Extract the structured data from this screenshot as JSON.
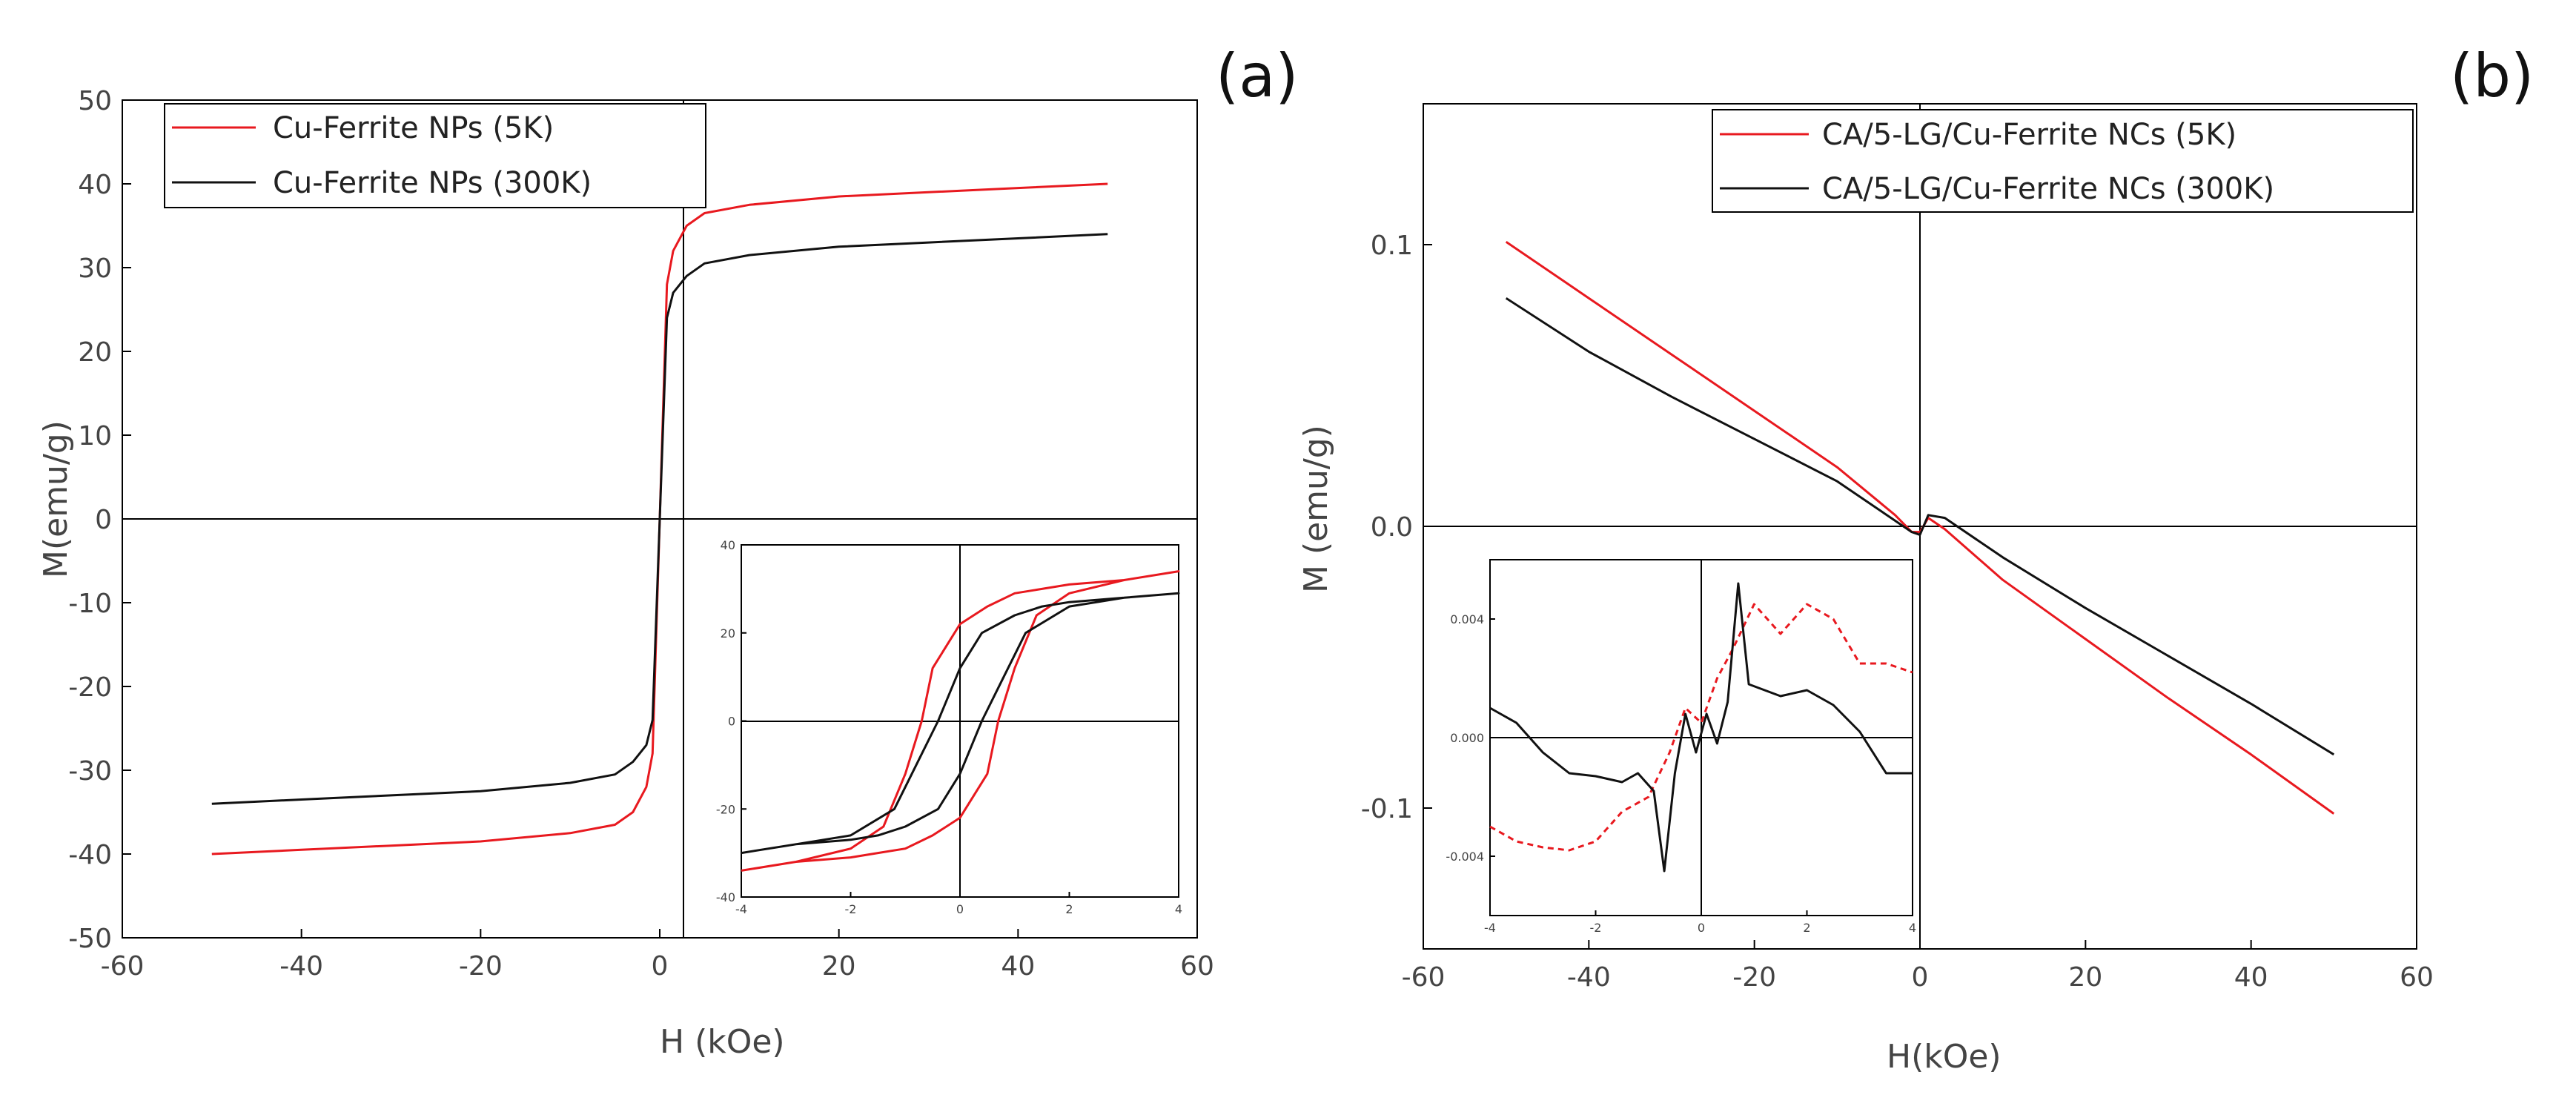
{
  "colors": {
    "red": "#e8191f",
    "black": "#111111",
    "axis": "#000000"
  },
  "panels": [
    {
      "label": "(a)"
    },
    {
      "label": "(b)"
    }
  ],
  "chart_data": [
    {
      "panel": "(a)",
      "type": "line",
      "xlabel": "H  (kOe)",
      "ylabel": "M(emu/g)",
      "xlim": [
        -60,
        60
      ],
      "ylim": [
        -50,
        50
      ],
      "xticks": [
        "-60",
        "-40",
        "-20",
        "0",
        "20",
        "40",
        "60"
      ],
      "yticks": [
        "50",
        "40",
        "30",
        "20",
        "10",
        "0",
        "-10",
        "-20",
        "-30",
        "-40",
        "-50"
      ],
      "series": [
        {
          "name": "Cu-Ferrite NPs (5K)",
          "color": "red",
          "x": [
            -50,
            -40,
            -30,
            -20,
            -10,
            -5,
            -3,
            -1.5,
            -0.8,
            0,
            0.8,
            1.5,
            3,
            5,
            10,
            20,
            30,
            40,
            50
          ],
          "y": [
            -40,
            -39.5,
            -39,
            -38.5,
            -37.5,
            -36.5,
            -35,
            -32,
            -28,
            0,
            28,
            32,
            35,
            36.5,
            37.5,
            38.5,
            39,
            39.5,
            40
          ]
        },
        {
          "name": "Cu-Ferrite NPs (300K)",
          "color": "black",
          "x": [
            -50,
            -40,
            -30,
            -20,
            -10,
            -5,
            -3,
            -1.5,
            -0.8,
            0,
            0.8,
            1.5,
            3,
            5,
            10,
            20,
            30,
            40,
            50
          ],
          "y": [
            -34,
            -33.5,
            -33,
            -32.5,
            -31.5,
            -30.5,
            -29,
            -27,
            -24,
            0,
            24,
            27,
            29,
            30.5,
            31.5,
            32.5,
            33,
            33.5,
            34
          ]
        }
      ],
      "inset": {
        "xlim": [
          -4,
          4
        ],
        "ylim": [
          -40,
          40
        ],
        "xticks": [
          "-4",
          "-2",
          "0",
          "2",
          "4"
        ],
        "yticks": [
          "40",
          "20",
          "0",
          "-20",
          "-40"
        ],
        "series": [
          {
            "name": "5K",
            "color": "red",
            "x": [
              -4,
              -3,
              -2,
              -1.4,
              -1.0,
              -0.7,
              -0.5,
              0,
              0.5,
              1.0,
              1.5,
              2,
              3,
              4,
              4,
              3,
              2,
              1.4,
              1.0,
              0.7,
              0.5,
              0,
              -0.5,
              -1.0,
              -1.5,
              -2,
              -3,
              -4
            ],
            "y": [
              -34,
              -32,
              -29,
              -24,
              -12,
              0,
              12,
              22,
              26,
              29,
              30,
              31,
              32,
              34,
              34,
              32,
              29,
              24,
              12,
              0,
              -12,
              -22,
              -26,
              -29,
              -30,
              -31,
              -32,
              -34
            ]
          },
          {
            "name": "300K",
            "color": "black",
            "x": [
              -4,
              -3,
              -2,
              -1.2,
              -0.8,
              -0.4,
              0,
              0.4,
              1.0,
              1.5,
              2,
              3,
              4,
              4,
              3,
              2,
              1.2,
              0.8,
              0.4,
              0,
              -0.4,
              -1.0,
              -1.5,
              -2,
              -3,
              -4
            ],
            "y": [
              -30,
              -28,
              -26,
              -20,
              -10,
              0,
              12,
              20,
              24,
              26,
              27,
              28,
              29,
              29,
              28,
              26,
              20,
              10,
              0,
              -12,
              -20,
              -24,
              -26,
              -27,
              -28,
              -30
            ]
          }
        ]
      }
    },
    {
      "panel": "(b)",
      "type": "line",
      "xlabel": "H(kOe)",
      "ylabel": "M (emu/g)",
      "xlim": [
        -60,
        60
      ],
      "ylim": [
        -0.15,
        0.15
      ],
      "xticks": [
        "-60",
        "-40",
        "-20",
        "0",
        "20",
        "40",
        "60"
      ],
      "yticks": [
        "0.1",
        "0.0",
        "-0.1"
      ],
      "series": [
        {
          "name": "CA/5-LG/Cu-Ferrite NCs (5K)",
          "color": "red",
          "x": [
            -50,
            -40,
            -30,
            -20,
            -10,
            -3,
            -1,
            0,
            1,
            3,
            10,
            20,
            30,
            40,
            50
          ],
          "y": [
            0.101,
            0.081,
            0.061,
            0.041,
            0.021,
            0.004,
            -0.002,
            -0.002,
            0.003,
            -0.001,
            -0.019,
            -0.04,
            -0.061,
            -0.081,
            -0.102
          ]
        },
        {
          "name": "CA/5-LG/Cu-Ferrite NCs (300K)",
          "color": "black",
          "x": [
            -50,
            -40,
            -30,
            -20,
            -10,
            -3,
            -1,
            0,
            1,
            3,
            10,
            20,
            30,
            40,
            50
          ],
          "y": [
            0.081,
            0.062,
            0.046,
            0.031,
            0.016,
            0.002,
            -0.002,
            -0.003,
            0.004,
            0.003,
            -0.011,
            -0.029,
            -0.046,
            -0.063,
            -0.081
          ]
        }
      ],
      "inset": {
        "xlim": [
          -4,
          4
        ],
        "ylim": [
          -0.006,
          0.006
        ],
        "xticks": [
          "-4",
          "-2",
          "0",
          "2",
          "4"
        ],
        "yticks": [
          "0.004",
          "0.000",
          "-0.004"
        ],
        "series": [
          {
            "name": "5K",
            "color": "red",
            "dashed": true,
            "x": [
              -4,
              -3.5,
              -3,
              -2.5,
              -2,
              -1.5,
              -1,
              -0.6,
              -0.3,
              0,
              0.3,
              0.6,
              1,
              1.5,
              2,
              2.5,
              3,
              3.5,
              4
            ],
            "y": [
              -0.003,
              -0.0035,
              -0.0037,
              -0.0038,
              -0.0035,
              -0.0025,
              -0.002,
              -0.0005,
              0.001,
              0.0005,
              0.002,
              0.003,
              0.0045,
              0.0035,
              0.0045,
              0.004,
              0.0025,
              0.0025,
              0.0022
            ]
          },
          {
            "name": "300K",
            "color": "black",
            "x": [
              -4,
              -3.5,
              -3,
              -2.5,
              -2,
              -1.5,
              -1.2,
              -0.9,
              -0.7,
              -0.5,
              -0.3,
              -0.1,
              0.1,
              0.3,
              0.5,
              0.7,
              0.9,
              1.5,
              2,
              2.5,
              3,
              3.5,
              4
            ],
            "y": [
              0.001,
              0.0005,
              -0.0005,
              -0.0012,
              -0.0013,
              -0.0015,
              -0.0012,
              -0.0018,
              -0.0045,
              -0.0012,
              0.0008,
              -0.0005,
              0.0008,
              -0.0002,
              0.0012,
              0.0052,
              0.0018,
              0.0014,
              0.0016,
              0.0011,
              0.0002,
              -0.0012,
              -0.0012
            ]
          }
        ]
      }
    }
  ]
}
